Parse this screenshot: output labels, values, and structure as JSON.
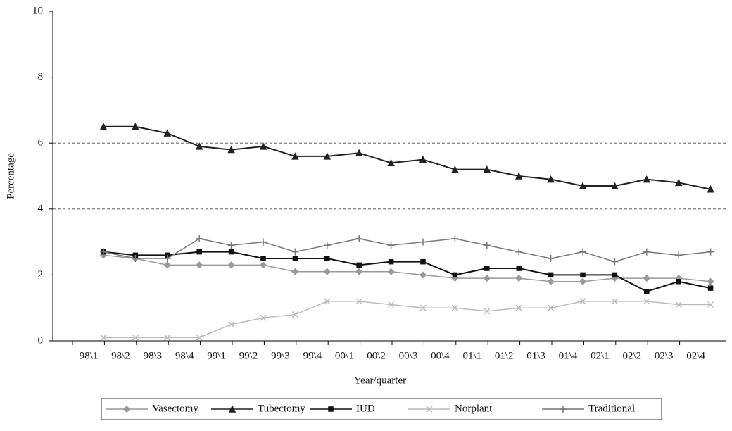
{
  "chart_data": {
    "type": "line",
    "x_label": "Year/quarter",
    "y_label": "Percentage",
    "categories": [
      "98\\1",
      "98\\2",
      "98\\3",
      "98\\4",
      "99\\1",
      "99\\2",
      "99\\3",
      "99\\4",
      "00\\1",
      "00\\2",
      "00\\3",
      "00\\4",
      "01\\1",
      "01\\2",
      "01\\3",
      "01\\4",
      "02\\1",
      "02\\2",
      "02\\3",
      "02\\4"
    ],
    "ylim": [
      0,
      10
    ],
    "yticks": [
      0,
      2,
      4,
      6,
      8,
      10
    ],
    "grid": true,
    "series": [
      {
        "name": "Vasectomy",
        "color": "#999999",
        "marker": "diamond",
        "values": [
          2.6,
          2.5,
          2.3,
          2.3,
          2.3,
          2.3,
          2.1,
          2.1,
          2.1,
          2.1,
          2.0,
          1.9,
          1.9,
          1.9,
          1.8,
          1.8,
          1.9,
          1.9,
          1.9,
          1.8
        ]
      },
      {
        "name": "Tubectomy",
        "color": "#222222",
        "marker": "triangle",
        "values": [
          6.5,
          6.5,
          6.3,
          5.9,
          5.8,
          5.9,
          5.6,
          5.6,
          5.7,
          5.4,
          5.5,
          5.2,
          5.2,
          5.0,
          4.9,
          4.7,
          4.7,
          4.9,
          4.8,
          4.6
        ]
      },
      {
        "name": "IUD",
        "color": "#111111",
        "marker": "square",
        "values": [
          2.7,
          2.6,
          2.6,
          2.7,
          2.7,
          2.5,
          2.5,
          2.5,
          2.3,
          2.4,
          2.4,
          2.0,
          2.2,
          2.2,
          2.0,
          2.0,
          2.0,
          1.5,
          1.8,
          1.6
        ]
      },
      {
        "name": "Norplant",
        "color": "#bbbbbb",
        "marker": "x",
        "values": [
          0.1,
          0.1,
          0.1,
          0.1,
          0.5,
          0.7,
          0.8,
          1.2,
          1.2,
          1.1,
          1.0,
          1.0,
          0.9,
          1.0,
          1.0,
          1.2,
          1.2,
          1.2,
          1.1,
          1.1
        ]
      },
      {
        "name": "Traditional",
        "color": "#777777",
        "marker": "plus",
        "values": [
          2.7,
          2.5,
          2.5,
          3.1,
          2.9,
          3.0,
          2.7,
          2.9,
          3.1,
          2.9,
          3.0,
          3.1,
          2.9,
          2.7,
          2.5,
          2.7,
          2.4,
          2.7,
          2.6,
          2.7
        ]
      }
    ]
  }
}
